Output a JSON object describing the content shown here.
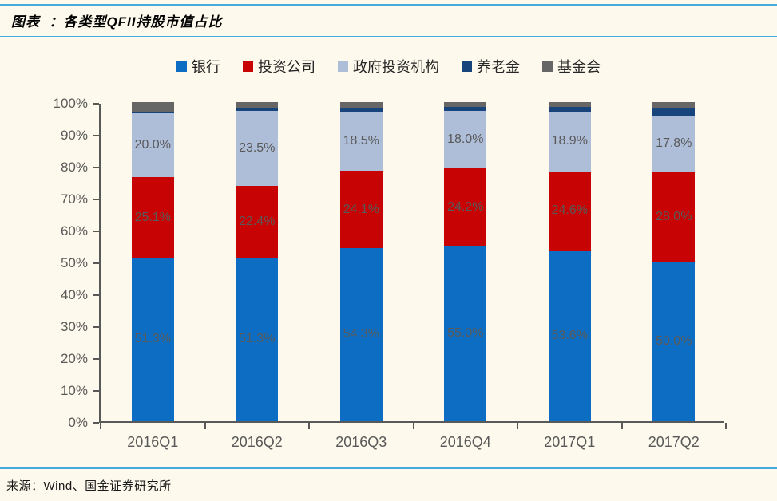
{
  "header": {
    "figure_title": "图表  ：各类型QFII持股市值占比",
    "rule_color": "#45abdf"
  },
  "footer": {
    "source": "来源：Wind、国金证券研究所"
  },
  "colors": {
    "background": "#fdf9ec",
    "axis": "#595959",
    "tick_label": "#595959",
    "data_label": "#595959",
    "legend_text": "#262626"
  },
  "chart_data": {
    "type": "bar",
    "stacked": true,
    "title": "各类型QFII持股市值占比",
    "xlabel": "",
    "ylabel": "",
    "ylim": [
      0,
      100
    ],
    "grid": false,
    "legend_position": "top",
    "categories": [
      "2016Q1",
      "2016Q2",
      "2016Q3",
      "2016Q4",
      "2017Q1",
      "2017Q2"
    ],
    "yticks": [
      "0%",
      "10%",
      "20%",
      "30%",
      "40%",
      "50%",
      "60%",
      "70%",
      "80%",
      "90%",
      "100%"
    ],
    "series": [
      {
        "name": "银行",
        "color": "#0c6dc2",
        "values": [
          51.3,
          51.3,
          54.3,
          55.0,
          53.6,
          50.0
        ],
        "labels": [
          "51.3%",
          "51.3%",
          "54.3%",
          "55.0%",
          "53.6%",
          "50.0%"
        ],
        "show_labels": true
      },
      {
        "name": "投资公司",
        "color": "#c70403",
        "values": [
          25.1,
          22.4,
          24.1,
          24.2,
          24.6,
          28.0
        ],
        "labels": [
          "25.1%",
          "22.4%",
          "24.1%",
          "24.2%",
          "24.6%",
          "28.0%"
        ],
        "show_labels": true
      },
      {
        "name": "政府投资机构",
        "color": "#afbed8",
        "values": [
          20.0,
          23.5,
          18.5,
          18.0,
          18.9,
          17.8
        ],
        "labels": [
          "20.0%",
          "23.5%",
          "18.5%",
          "18.0%",
          "18.9%",
          "17.8%"
        ],
        "show_labels": true
      },
      {
        "name": "养老金",
        "color": "#17457b",
        "values": [
          0.6,
          0.7,
          1.0,
          1.2,
          1.4,
          2.5
        ],
        "labels": [],
        "show_labels": false
      },
      {
        "name": "基金会",
        "color": "#666666",
        "values": [
          3.0,
          2.1,
          2.1,
          1.6,
          1.5,
          1.7
        ],
        "labels": [],
        "show_labels": false
      }
    ]
  }
}
